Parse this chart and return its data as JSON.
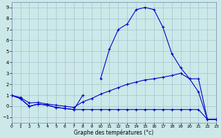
{
  "background_color": "#cce8e8",
  "grid_color": "#99bbcc",
  "line_color": "#0000cc",
  "xlabel": "Graphe des températures (°c)",
  "xlim": [
    0,
    23
  ],
  "ylim": [
    -1.5,
    9.5
  ],
  "xticks": [
    0,
    1,
    2,
    3,
    4,
    5,
    6,
    7,
    8,
    9,
    10,
    11,
    12,
    13,
    14,
    15,
    16,
    17,
    18,
    19,
    20,
    21,
    22,
    23
  ],
  "yticks": [
    -1,
    0,
    1,
    2,
    3,
    4,
    5,
    6,
    7,
    8,
    9
  ],
  "line_bottom_x": [
    0,
    1,
    2,
    3,
    4,
    5,
    6,
    7,
    8,
    9,
    10,
    11,
    12,
    13,
    14,
    15,
    16,
    17,
    18,
    19,
    20,
    21,
    22,
    23
  ],
  "line_bottom_y": [
    1.0,
    0.7,
    0.0,
    0.2,
    0.1,
    -0.1,
    -0.2,
    -0.3,
    -0.3,
    -0.3,
    -0.3,
    -0.3,
    -0.3,
    -0.3,
    -0.3,
    -0.3,
    -0.3,
    -0.3,
    -0.3,
    -0.3,
    -0.3,
    -0.3,
    -1.2,
    -1.2
  ],
  "line_upper_x": [
    10,
    11,
    12,
    13,
    14,
    15,
    16,
    17,
    18,
    19,
    20,
    21,
    22,
    23
  ],
  "line_upper_y": [
    2.5,
    5.2,
    7.0,
    7.5,
    8.8,
    9.0,
    8.8,
    7.2,
    4.8,
    3.5,
    2.5,
    1.3,
    -1.2,
    -1.2
  ],
  "line_diag_x": [
    0,
    1,
    2,
    3,
    4,
    5,
    6,
    7,
    8,
    9,
    10,
    11,
    12,
    13,
    14,
    15,
    16,
    17,
    18,
    19,
    20,
    21,
    22,
    23
  ],
  "line_diag_y": [
    1.0,
    0.8,
    0.3,
    0.35,
    0.2,
    0.1,
    0.0,
    -0.1,
    0.4,
    0.7,
    1.1,
    1.4,
    1.7,
    2.0,
    2.2,
    2.4,
    2.5,
    2.65,
    2.8,
    3.0,
    2.5,
    2.5,
    -1.2,
    -1.2
  ],
  "line_short_x": [
    0,
    1,
    2,
    3,
    4,
    5,
    6,
    7,
    8
  ],
  "line_short_y": [
    1.0,
    0.7,
    0.0,
    0.2,
    0.1,
    -0.1,
    -0.2,
    -0.3,
    1.0
  ]
}
